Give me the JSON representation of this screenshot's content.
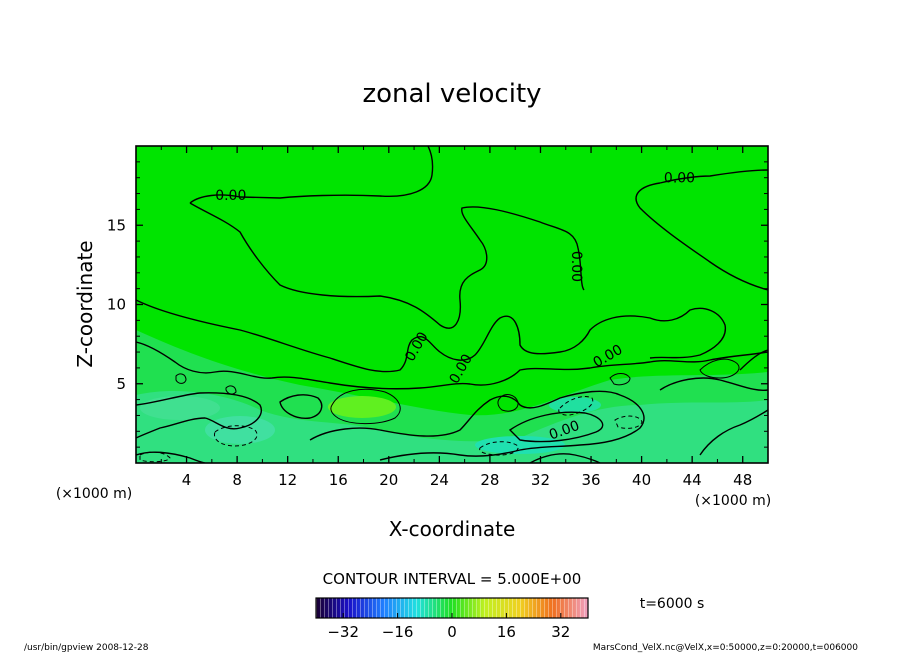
{
  "chart_data": {
    "type": "heatmap",
    "title": "zonal velocity",
    "xlabel": "X-coordinate",
    "ylabel": "Z-coordinate",
    "x_unit_label": "(×1000 m)",
    "y_unit_label": "(×1000 m)",
    "xlim": [
      0,
      50
    ],
    "ylim": [
      0,
      20
    ],
    "x_ticks": [
      4,
      8,
      12,
      16,
      20,
      24,
      28,
      32,
      36,
      40,
      44,
      48
    ],
    "y_ticks": [
      5,
      10,
      15
    ],
    "contour_interval_text": "CONTOUR INTERVAL = 5.000E+00",
    "contour_labels": [
      {
        "text": "0.00",
        "x": 7.5,
        "z": 16.6
      },
      {
        "text": "0.00",
        "x": 43.0,
        "z": 17.7
      },
      {
        "text": "0.00",
        "x": 34.5,
        "z": 12.4
      },
      {
        "text": "0.00",
        "x": 22.5,
        "z": 7.2
      },
      {
        "text": "0.00",
        "x": 26.0,
        "z": 5.8
      },
      {
        "text": "0.00",
        "x": 37.5,
        "z": 6.5
      },
      {
        "text": "0.00",
        "x": 34.0,
        "z": 1.8
      }
    ],
    "colorbar": {
      "range": [
        -40,
        40
      ],
      "ticks": [
        "−32",
        "−16",
        "0",
        "16",
        "32"
      ],
      "tick_values": [
        -32,
        -16,
        0,
        16,
        32
      ]
    },
    "time_label": "t=6000 s",
    "colors": {
      "background_field": "#00e400",
      "contour_line": "#000000"
    }
  },
  "footer": {
    "left": "/usr/bin/gpview  2008-12-28",
    "right": "MarsCond_VelX.nc@VelX,x=0:50000,z=0:20000,t=006000"
  }
}
